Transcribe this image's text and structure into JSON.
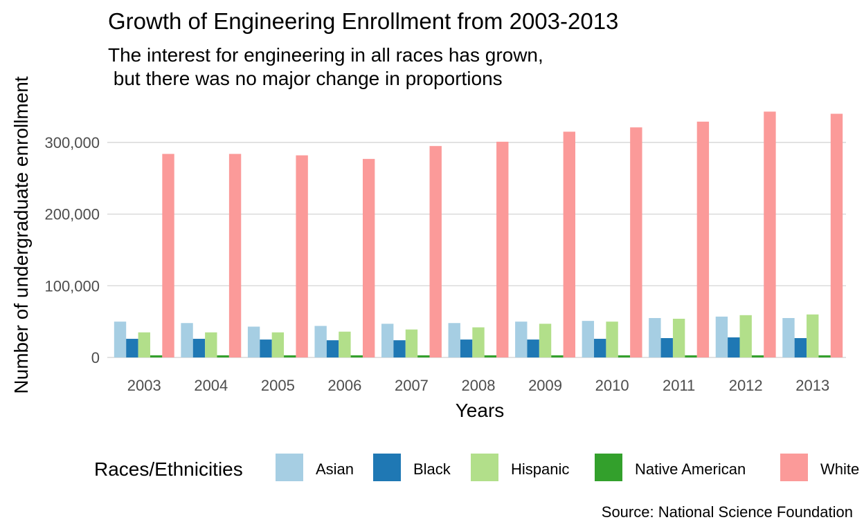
{
  "chart_data": {
    "type": "bar",
    "title": "Growth of Engineering Enrollment from 2003-2013",
    "subtitle_lines": [
      "The interest for engineering in all races has grown,",
      " but there was no major change in proportions"
    ],
    "xlabel": "Years",
    "ylabel": "Number of undergraduate enrollment",
    "caption": "Source: National Science Foundation",
    "ylim": [
      0,
      350000
    ],
    "y_ticks": [
      0,
      100000,
      200000,
      300000
    ],
    "y_tick_labels": [
      "0",
      "100,000",
      "200,000",
      "300,000"
    ],
    "grid": true,
    "legend": {
      "title": "Races/Ethnicities",
      "position": "bottom"
    },
    "categories": [
      "2003",
      "2004",
      "2005",
      "2006",
      "2007",
      "2008",
      "2009",
      "2010",
      "2011",
      "2012",
      "2013"
    ],
    "series": [
      {
        "name": "Asian",
        "color": "#a6cee3",
        "values": [
          50000,
          48000,
          43000,
          44000,
          47000,
          48000,
          50000,
          51000,
          55000,
          57000,
          55000
        ]
      },
      {
        "name": "Black",
        "color": "#1f78b4",
        "values": [
          26000,
          26000,
          25000,
          24000,
          24000,
          25000,
          25000,
          26000,
          27000,
          28000,
          27000
        ]
      },
      {
        "name": "Hispanic",
        "color": "#b2df8a",
        "values": [
          35000,
          35000,
          35000,
          36000,
          39000,
          42000,
          47000,
          50000,
          54000,
          59000,
          60000
        ]
      },
      {
        "name": "Native American",
        "color": "#33a02c",
        "values": [
          3000,
          3000,
          3000,
          3000,
          3000,
          3000,
          3000,
          3000,
          3000,
          3000,
          3000
        ]
      },
      {
        "name": "White",
        "color": "#fb9a99",
        "values": [
          284000,
          284000,
          282000,
          277000,
          295000,
          301000,
          315000,
          321000,
          329000,
          343000,
          340000
        ]
      }
    ]
  }
}
